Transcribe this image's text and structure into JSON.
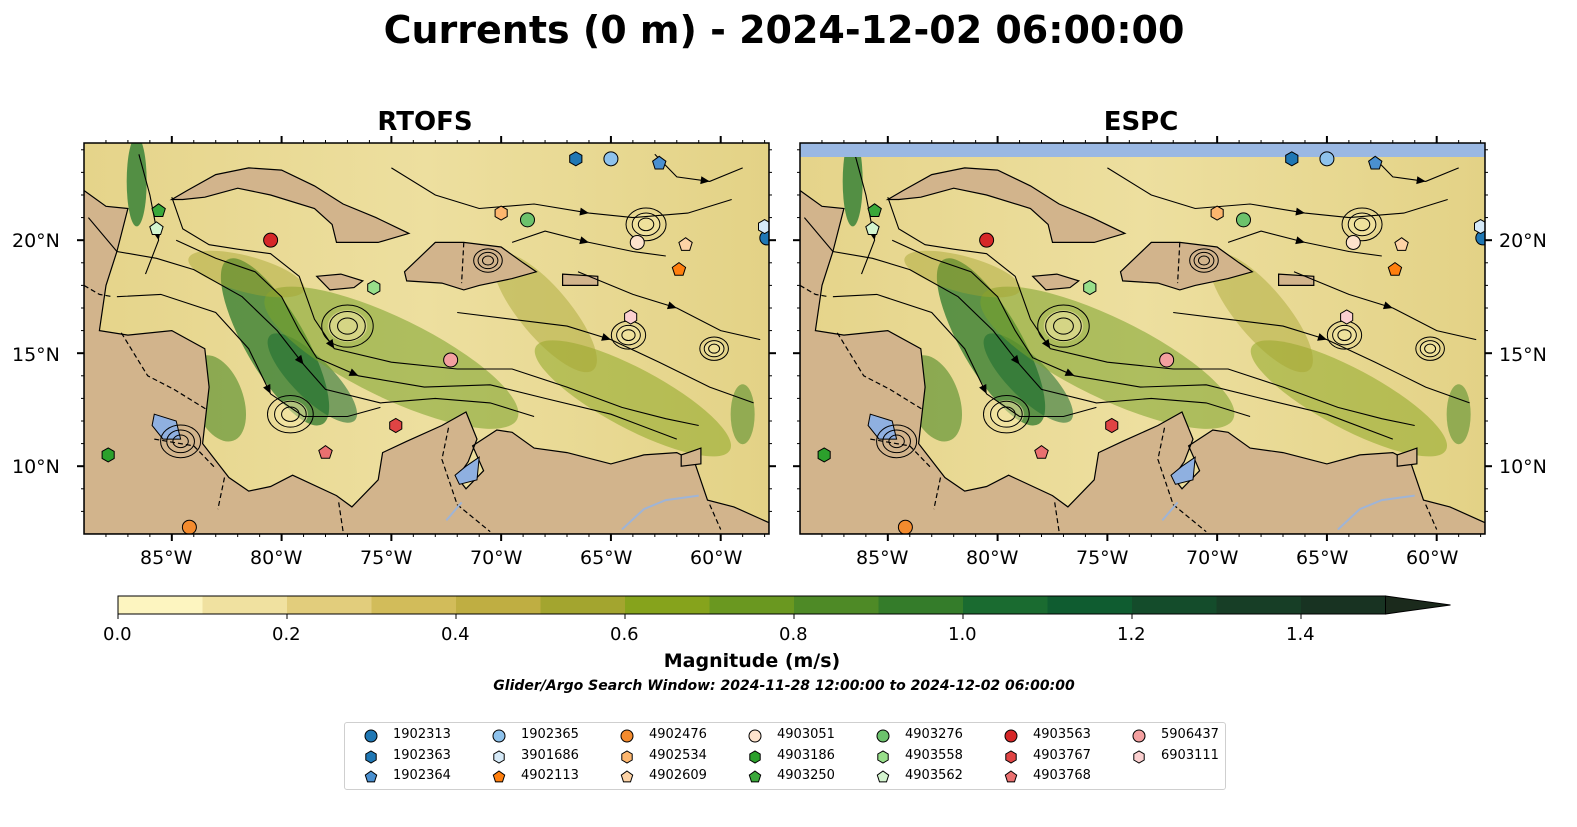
{
  "title": "Currents (0 m) - 2024-12-02 06:00:00",
  "panels": [
    {
      "title": "RTOFS"
    },
    {
      "title": "ESPC"
    }
  ],
  "lon_ticks": [
    "85°W",
    "80°W",
    "75°W",
    "70°W",
    "65°W",
    "60°W"
  ],
  "lat_ticks": [
    "20°N",
    "15°N",
    "10°N"
  ],
  "extent": {
    "lon": [
      -89.0,
      -57.8
    ],
    "lat": [
      7.0,
      24.3
    ]
  },
  "colorbar": {
    "label": "Magnitude (m/s)",
    "range": [
      0.0,
      1.5
    ],
    "step": 0.1,
    "extend": "max",
    "tick_labels": [
      "0.0",
      "0.2",
      "0.4",
      "0.6",
      "0.8",
      "1.0",
      "1.2",
      "1.4"
    ],
    "colors": [
      "#fdf5c0",
      "#f0e1a0",
      "#e2cd7c",
      "#d2bc5a",
      "#bfae42",
      "#a3a52f",
      "#86a31c",
      "#6a9820",
      "#4e8a26",
      "#347c2a",
      "#1a6b30",
      "#0f5c30",
      "#144c2b",
      "#173e26",
      "#183322",
      "#1b2a1c"
    ]
  },
  "search_window": "Glider/Argo Search Window: 2024-11-28 12:00:00 to 2024-12-02 06:00:00",
  "colors": {
    "land": "#d2b48c",
    "lake": "#8fb0e0",
    "river": "#9fb4d6",
    "missing_data": "#9ab8e3"
  },
  "legend": [
    {
      "label": "1902313",
      "color": "#1f77b4",
      "marker": "circle"
    },
    {
      "label": "1902363",
      "color": "#1f77b4",
      "marker": "hexagon"
    },
    {
      "label": "1902364",
      "color": "#4a90d0",
      "marker": "pentagon"
    },
    {
      "label": "1902365",
      "color": "#8ec2ec",
      "marker": "circle"
    },
    {
      "label": "3901686",
      "color": "#d6eaf8",
      "marker": "hexagon"
    },
    {
      "label": "4902113",
      "color": "#ff7f0e",
      "marker": "pentagon"
    },
    {
      "label": "4902476",
      "color": "#f38b2e",
      "marker": "circle"
    },
    {
      "label": "4902534",
      "color": "#fdb66e",
      "marker": "hexagon"
    },
    {
      "label": "4902609",
      "color": "#fdd3a6",
      "marker": "pentagon"
    },
    {
      "label": "4903051",
      "color": "#fde3cc",
      "marker": "circle"
    },
    {
      "label": "4903186",
      "color": "#2ca02c",
      "marker": "hexagon"
    },
    {
      "label": "4903250",
      "color": "#3aa83a",
      "marker": "pentagon"
    },
    {
      "label": "4903276",
      "color": "#6cc26c",
      "marker": "circle"
    },
    {
      "label": "4903558",
      "color": "#98df8a",
      "marker": "hexagon"
    },
    {
      "label": "4903562",
      "color": "#d4f5cf",
      "marker": "pentagon"
    },
    {
      "label": "4903563",
      "color": "#d62728",
      "marker": "circle"
    },
    {
      "label": "4903767",
      "color": "#e04444",
      "marker": "hexagon"
    },
    {
      "label": "4903768",
      "color": "#ea7070",
      "marker": "pentagon"
    },
    {
      "label": "5906437",
      "color": "#f4a0a0",
      "marker": "circle"
    },
    {
      "label": "6903111",
      "color": "#fbd0d0",
      "marker": "hexagon"
    }
  ],
  "floats": [
    {
      "id": "1902313",
      "lon": -57.9,
      "lat": 20.1
    },
    {
      "id": "1902363",
      "lon": -66.6,
      "lat": 23.6
    },
    {
      "id": "1902364",
      "lon": -62.8,
      "lat": 23.4
    },
    {
      "id": "1902365",
      "lon": -65.0,
      "lat": 23.6
    },
    {
      "id": "3901686",
      "lon": -58.0,
      "lat": 20.6
    },
    {
      "id": "4902113",
      "lon": -61.9,
      "lat": 18.7
    },
    {
      "id": "4902476",
      "lon": -84.2,
      "lat": 7.3
    },
    {
      "id": "4902534",
      "lon": -70.0,
      "lat": 21.2
    },
    {
      "id": "4902609",
      "lon": -61.6,
      "lat": 19.8
    },
    {
      "id": "4903051",
      "lon": -63.8,
      "lat": 19.9
    },
    {
      "id": "4903186",
      "lon": -87.9,
      "lat": 10.5
    },
    {
      "id": "4903250",
      "lon": -85.6,
      "lat": 21.3
    },
    {
      "id": "4903276",
      "lon": -68.8,
      "lat": 20.9
    },
    {
      "id": "4903558",
      "lon": -75.8,
      "lat": 17.9
    },
    {
      "id": "4903562",
      "lon": -85.7,
      "lat": 20.5
    },
    {
      "id": "4903563",
      "lon": -80.5,
      "lat": 20.0
    },
    {
      "id": "4903767",
      "lon": -74.8,
      "lat": 11.8
    },
    {
      "id": "4903768",
      "lon": -78.0,
      "lat": 10.6
    },
    {
      "id": "5906437",
      "lon": -72.3,
      "lat": 14.7
    },
    {
      "id": "6903111",
      "lon": -64.1,
      "lat": 16.6
    }
  ]
}
